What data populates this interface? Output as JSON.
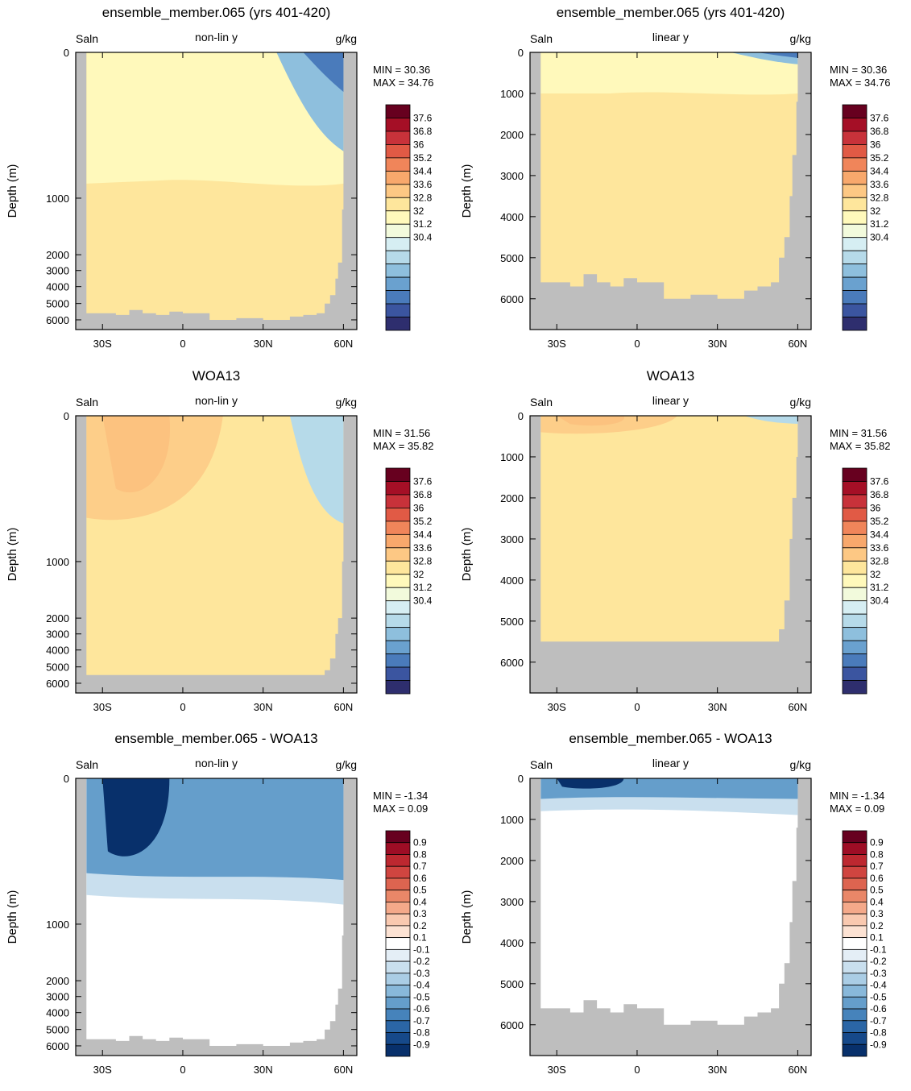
{
  "figure": {
    "domain_note": "",
    "colors": {
      "land": "#bebebe",
      "frame": "#000000"
    }
  },
  "chart_data": [
    {
      "type": "heatmap",
      "row": 0,
      "col": 0,
      "title": "ensemble_member.065 (yrs 401-420)",
      "left_label": "Saln",
      "center_label": "non-lin y",
      "right_label": "g/kg",
      "ylabel": "Depth (m)",
      "yscale": "non-linear",
      "ylim": [
        0,
        6500
      ],
      "ytick_labels": [
        "0",
        "1000",
        "2000",
        "3000",
        "4000",
        "5000",
        "6000"
      ],
      "xtick_labels": [
        "30S",
        "0",
        "30N",
        "60N"
      ],
      "xlim": [
        -40,
        65
      ],
      "min_label": "MIN =  30.36",
      "max_label": "MAX =  34.76",
      "colorbar": "salinity",
      "field": "model"
    },
    {
      "type": "heatmap",
      "row": 0,
      "col": 1,
      "title": "ensemble_member.065 (yrs 401-420)",
      "left_label": "Saln",
      "center_label": "linear y",
      "right_label": "g/kg",
      "ylabel": "Depth (m)",
      "yscale": "linear",
      "ylim": [
        0,
        6750
      ],
      "ytick_labels": [
        "0",
        "1000",
        "2000",
        "3000",
        "4000",
        "5000",
        "6000"
      ],
      "xtick_labels": [
        "30S",
        "0",
        "30N",
        "60N"
      ],
      "xlim": [
        -40,
        65
      ],
      "min_label": "MIN =  30.36",
      "max_label": "MAX =  34.76",
      "colorbar": "salinity",
      "field": "model"
    },
    {
      "type": "heatmap",
      "row": 1,
      "col": 0,
      "title": "WOA13",
      "left_label": "Saln",
      "center_label": "non-lin y",
      "right_label": "g/kg",
      "ylabel": "Depth (m)",
      "yscale": "non-linear",
      "ylim": [
        0,
        6500
      ],
      "ytick_labels": [
        "0",
        "1000",
        "2000",
        "3000",
        "4000",
        "5000",
        "6000"
      ],
      "xtick_labels": [
        "30S",
        "0",
        "30N",
        "60N"
      ],
      "xlim": [
        -40,
        65
      ],
      "min_label": "MIN =  31.56",
      "max_label": "MAX =  35.82",
      "colorbar": "salinity",
      "field": "obs"
    },
    {
      "type": "heatmap",
      "row": 1,
      "col": 1,
      "title": "WOA13",
      "left_label": "Saln",
      "center_label": "linear y",
      "right_label": "g/kg",
      "ylabel": "Depth (m)",
      "yscale": "linear",
      "ylim": [
        0,
        6750
      ],
      "ytick_labels": [
        "0",
        "1000",
        "2000",
        "3000",
        "4000",
        "5000",
        "6000"
      ],
      "xtick_labels": [
        "30S",
        "0",
        "30N",
        "60N"
      ],
      "xlim": [
        -40,
        65
      ],
      "min_label": "MIN =  31.56",
      "max_label": "MAX =  35.82",
      "colorbar": "salinity",
      "field": "obs"
    },
    {
      "type": "heatmap",
      "row": 2,
      "col": 0,
      "title": "ensemble_member.065 - WOA13",
      "left_label": "Saln",
      "center_label": "non-lin y",
      "right_label": "g/kg",
      "ylabel": "Depth (m)",
      "yscale": "non-linear",
      "ylim": [
        0,
        6500
      ],
      "ytick_labels": [
        "0",
        "1000",
        "2000",
        "3000",
        "4000",
        "5000",
        "6000"
      ],
      "xtick_labels": [
        "30S",
        "0",
        "30N",
        "60N"
      ],
      "xlim": [
        -40,
        65
      ],
      "min_label": "MIN =  -1.34",
      "max_label": "MAX =   0.09",
      "colorbar": "difference",
      "field": "diff"
    },
    {
      "type": "heatmap",
      "row": 2,
      "col": 1,
      "title": "ensemble_member.065 - WOA13",
      "left_label": "Saln",
      "center_label": "linear y",
      "right_label": "g/kg",
      "ylabel": "Depth (m)",
      "yscale": "linear",
      "ylim": [
        0,
        6750
      ],
      "ytick_labels": [
        "0",
        "1000",
        "2000",
        "3000",
        "4000",
        "5000",
        "6000"
      ],
      "xtick_labels": [
        "30S",
        "0",
        "30N",
        "60N"
      ],
      "xlim": [
        -40,
        65
      ],
      "min_label": "MIN =  -1.34",
      "max_label": "MAX =   0.09",
      "colorbar": "difference",
      "field": "diff"
    }
  ],
  "colorbars": {
    "salinity": {
      "labels": [
        "37.6",
        "36.8",
        "36",
        "35.2",
        "34.4",
        "33.6",
        "32.8",
        "32",
        "31.2",
        "30.4"
      ],
      "colors": [
        "#67001f",
        "#a50f26",
        "#c8323a",
        "#e15a45",
        "#f0855a",
        "#f8a86c",
        "#fdc884",
        "#fee69c",
        "#fff9bb",
        "#f2fadc",
        "#d6eef3",
        "#b6dae9",
        "#8ebfdd",
        "#6aa1cf",
        "#4a7bbb",
        "#3b55a0",
        "#2e2e6e"
      ]
    },
    "difference": {
      "labels": [
        "0.9",
        "0.8",
        "0.7",
        "0.6",
        "0.5",
        "0.4",
        "0.3",
        "0.2",
        "0.1",
        "-0.1",
        "-0.2",
        "-0.3",
        "-0.4",
        "-0.5",
        "-0.6",
        "-0.7",
        "-0.8",
        "-0.9"
      ],
      "colors": [
        "#67001f",
        "#9e0d25",
        "#bd2830",
        "#d04540",
        "#dd6450",
        "#e98768",
        "#f4a98a",
        "#f9c9b0",
        "#fce2d3",
        "#ffffff",
        "#e4eef6",
        "#c9dfee",
        "#aacde5",
        "#88b8da",
        "#659ecb",
        "#4683bb",
        "#2b66a6",
        "#16498a",
        "#08306b"
      ]
    }
  }
}
